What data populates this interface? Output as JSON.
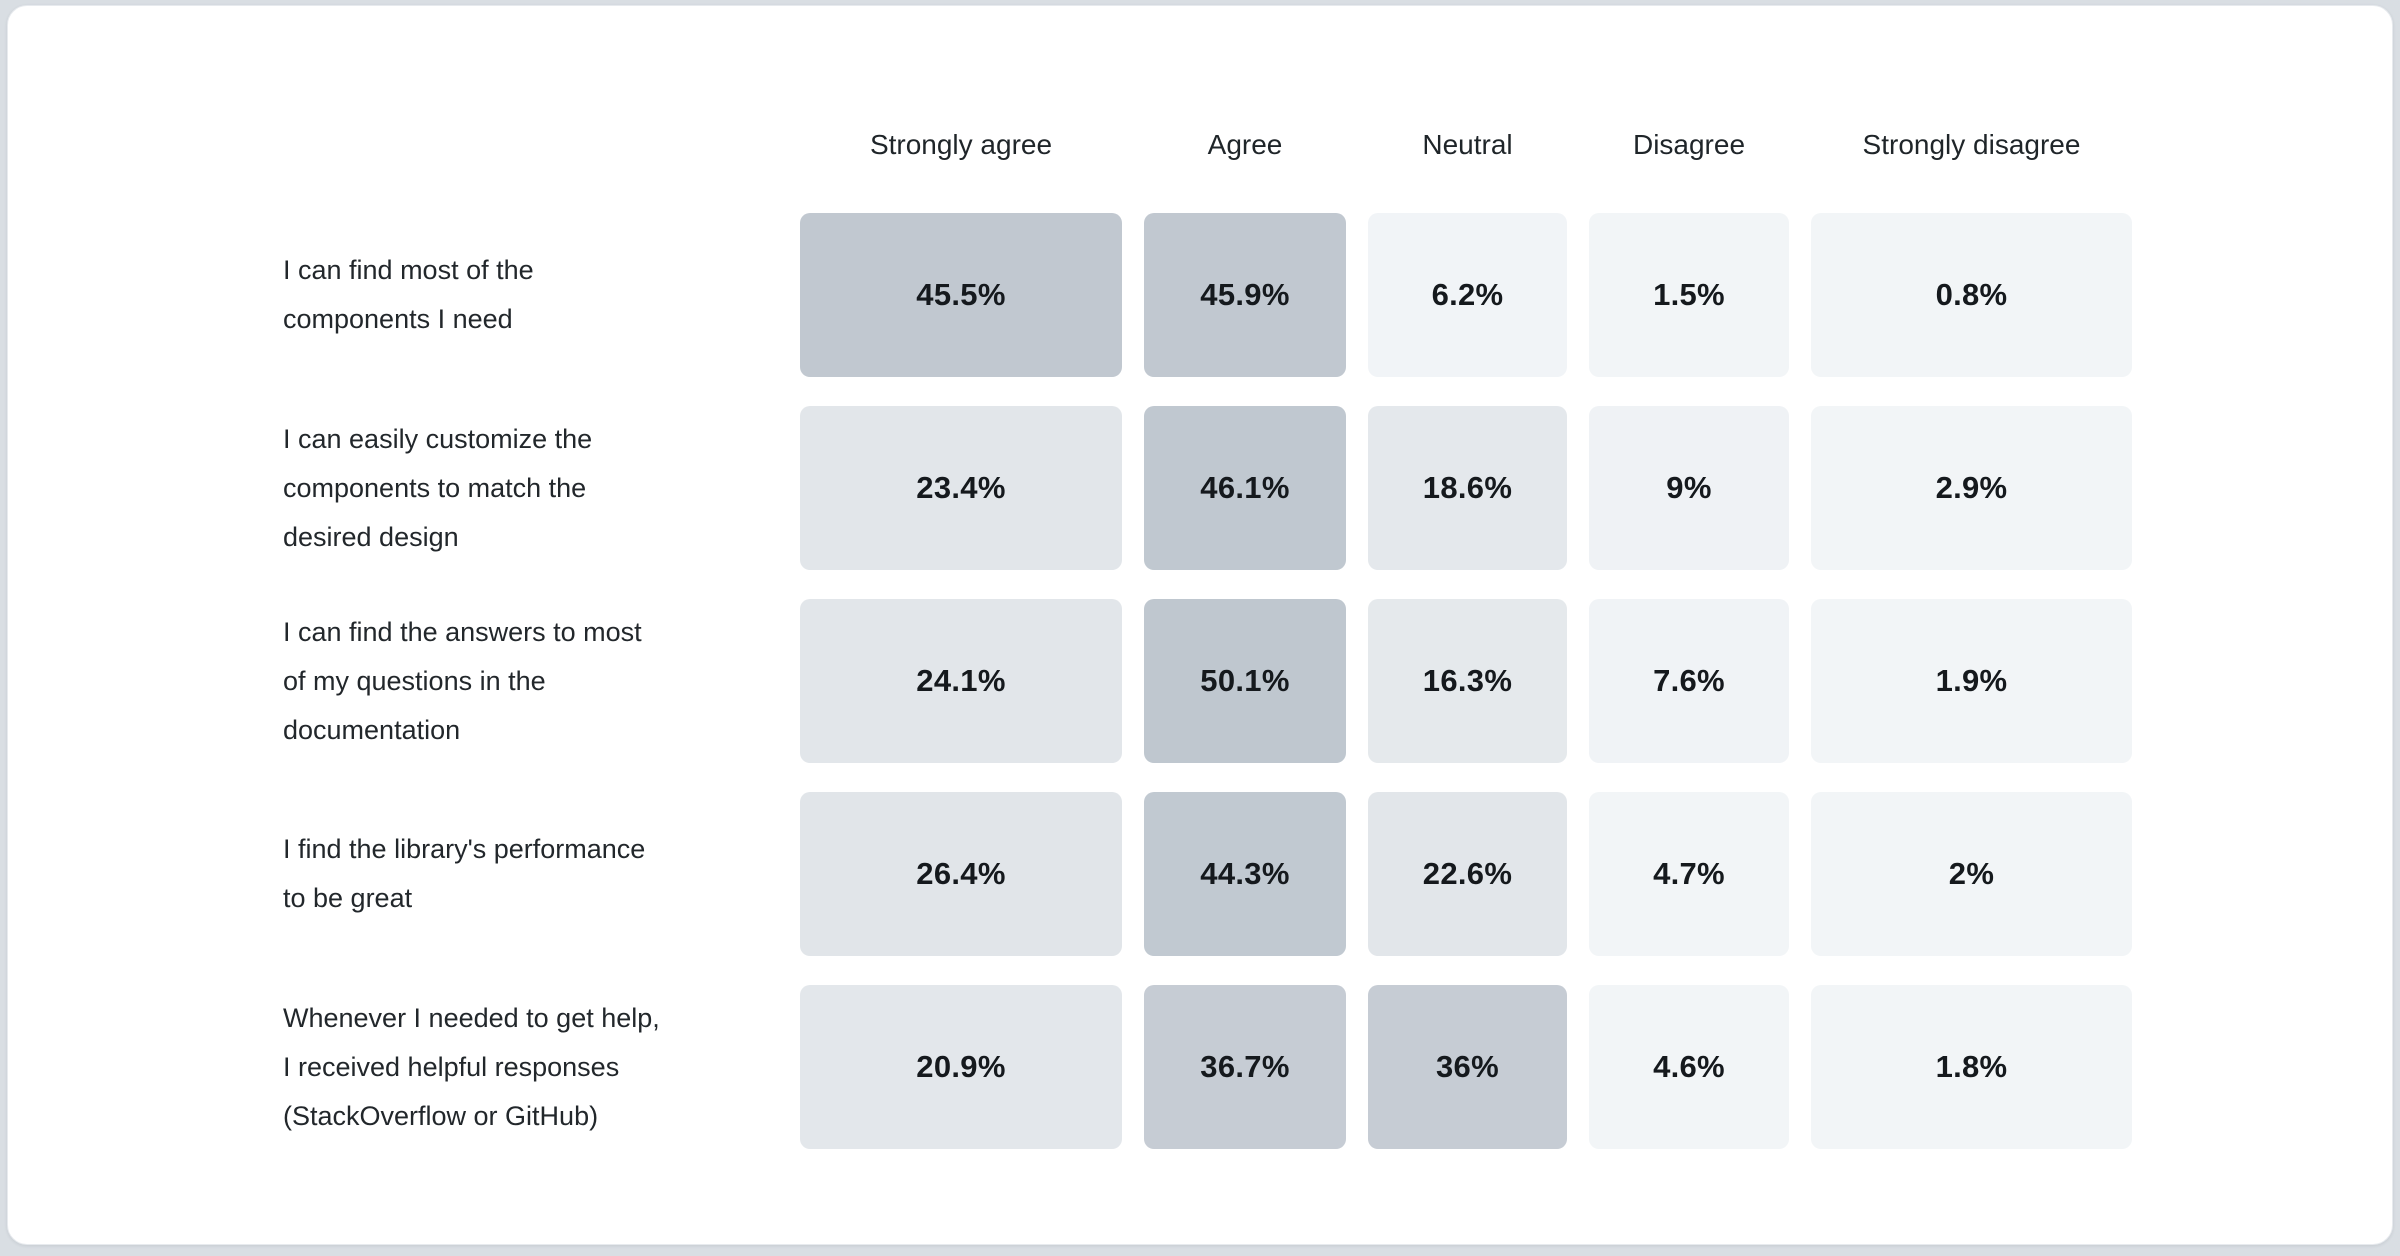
{
  "page": {
    "background_color": "#d9dee3",
    "card_background_color": "#ffffff"
  },
  "table": {
    "columns": [
      "Strongly agree",
      "Agree",
      "Neutral",
      "Disagree",
      "Strongly disagree"
    ],
    "rows": [
      {
        "label": "I can find most of the\ncomponents I need",
        "cells": [
          {
            "value": "45.5%",
            "color": "#c1c8d0"
          },
          {
            "value": "45.9%",
            "color": "#c1c8d0"
          },
          {
            "value": "6.2%",
            "color": "#f1f4f7"
          },
          {
            "value": "1.5%",
            "color": "#f2f5f7"
          },
          {
            "value": "0.8%",
            "color": "#f2f5f7"
          }
        ]
      },
      {
        "label": "I can easily customize the\ncomponents to match the\ndesired design",
        "cells": [
          {
            "value": "23.4%",
            "color": "#e2e6ea"
          },
          {
            "value": "46.1%",
            "color": "#c0c8d0"
          },
          {
            "value": "18.6%",
            "color": "#e4e8ec"
          },
          {
            "value": "9%",
            "color": "#eff2f5"
          },
          {
            "value": "2.9%",
            "color": "#f2f5f7"
          }
        ]
      },
      {
        "label": "I can find the answers to most\nof my questions in the\ndocumentation",
        "cells": [
          {
            "value": "24.1%",
            "color": "#e2e6ea"
          },
          {
            "value": "50.1%",
            "color": "#bfc7cf"
          },
          {
            "value": "16.3%",
            "color": "#e5e9ec"
          },
          {
            "value": "7.6%",
            "color": "#f0f3f6"
          },
          {
            "value": "1.9%",
            "color": "#f2f5f7"
          }
        ]
      },
      {
        "label": "I find the library's performance\nto be great",
        "cells": [
          {
            "value": "26.4%",
            "color": "#e1e5e9"
          },
          {
            "value": "44.3%",
            "color": "#c1c9d1"
          },
          {
            "value": "22.6%",
            "color": "#e2e6ea"
          },
          {
            "value": "4.7%",
            "color": "#f2f5f7"
          },
          {
            "value": "2%",
            "color": "#f2f5f7"
          }
        ]
      },
      {
        "label": "Whenever I needed to get help,\nI received helpful responses\n(StackOverflow or GitHub)",
        "cells": [
          {
            "value": "20.9%",
            "color": "#e3e7eb"
          },
          {
            "value": "36.7%",
            "color": "#c6ccd4"
          },
          {
            "value": "36%",
            "color": "#c6ccd4"
          },
          {
            "value": "4.6%",
            "color": "#f2f5f7"
          },
          {
            "value": "1.8%",
            "color": "#f2f5f7"
          }
        ]
      }
    ]
  },
  "chart_data": {
    "type": "heatmap",
    "title": "",
    "categories": [
      "Strongly agree",
      "Agree",
      "Neutral",
      "Disagree",
      "Strongly disagree"
    ],
    "rows": [
      "I can find most of the components I need",
      "I can easily customize the components to match the desired design",
      "I can find the answers to most of my questions in the documentation",
      "I find the library's performance to be great",
      "Whenever I needed to get help, I received helpful responses (StackOverflow or GitHub)"
    ],
    "values": [
      [
        45.5,
        45.9,
        6.2,
        1.5,
        0.8
      ],
      [
        23.4,
        46.1,
        18.6,
        9,
        2.9
      ],
      [
        24.1,
        50.1,
        16.3,
        7.6,
        1.9
      ],
      [
        26.4,
        44.3,
        22.6,
        4.7,
        2
      ],
      [
        20.9,
        36.7,
        36,
        4.6,
        1.8
      ]
    ],
    "unit": "%",
    "legend": "none",
    "grid": false,
    "color_scale": {
      "min_value_color": "#f2f5f7",
      "max_value_color": "#bfc7cf",
      "max_value": 50.1
    }
  }
}
